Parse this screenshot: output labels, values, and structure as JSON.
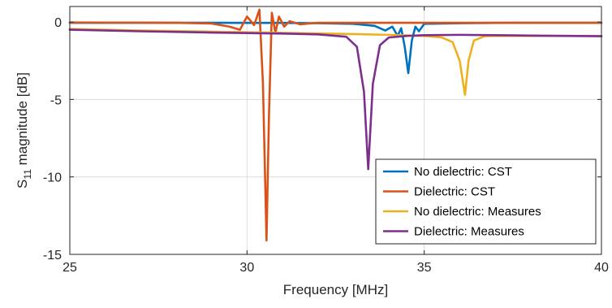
{
  "chart_data": {
    "type": "line",
    "title": "",
    "xlabel": "Frequency [MHz]",
    "ylabel": {
      "main": "S",
      "sub": "11",
      "rest": " magnitude [dB]"
    },
    "xlim": [
      25,
      40
    ],
    "ylim": [
      -15,
      1
    ],
    "xticks": [
      25,
      30,
      35,
      40
    ],
    "yticks": [
      0,
      -5,
      -10,
      -15
    ],
    "grid": true,
    "legend_position": "bottom-right",
    "series": [
      {
        "name": "No dielectric: CST",
        "color": "#0072BD",
        "points": [
          [
            25,
            -0.05
          ],
          [
            26,
            -0.05
          ],
          [
            27,
            -0.05
          ],
          [
            28,
            -0.05
          ],
          [
            29,
            -0.05
          ],
          [
            30,
            -0.06
          ],
          [
            31,
            -0.06
          ],
          [
            32,
            -0.08
          ],
          [
            33,
            -0.12
          ],
          [
            33.6,
            -0.25
          ],
          [
            33.9,
            -0.55
          ],
          [
            34.1,
            -0.3
          ],
          [
            34.25,
            -0.9
          ],
          [
            34.35,
            -0.4
          ],
          [
            34.45,
            -1.6
          ],
          [
            34.55,
            -3.3
          ],
          [
            34.65,
            -1.2
          ],
          [
            34.75,
            -0.3
          ],
          [
            34.85,
            -0.6
          ],
          [
            35,
            -0.12
          ],
          [
            36,
            -0.08
          ],
          [
            37,
            -0.06
          ],
          [
            38,
            -0.05
          ],
          [
            39,
            -0.05
          ],
          [
            40,
            -0.05
          ]
        ]
      },
      {
        "name": "Dielectric: CST",
        "color": "#D95319",
        "points": [
          [
            25,
            -0.03
          ],
          [
            26,
            -0.04
          ],
          [
            27,
            -0.04
          ],
          [
            28,
            -0.05
          ],
          [
            29,
            -0.1
          ],
          [
            29.5,
            -0.3
          ],
          [
            29.8,
            -0.5
          ],
          [
            30,
            0.35
          ],
          [
            30.2,
            -0.2
          ],
          [
            30.35,
            0.8
          ],
          [
            30.45,
            -4
          ],
          [
            30.55,
            -14.1
          ],
          [
            30.62,
            -6
          ],
          [
            30.7,
            0.6
          ],
          [
            30.8,
            -0.7
          ],
          [
            30.9,
            0.35
          ],
          [
            31.05,
            -0.3
          ],
          [
            31.2,
            0.05
          ],
          [
            31.5,
            -0.15
          ],
          [
            32,
            -0.05
          ],
          [
            33,
            -0.05
          ],
          [
            34,
            -0.05
          ],
          [
            35,
            -0.05
          ],
          [
            36,
            -0.05
          ],
          [
            37,
            -0.05
          ],
          [
            38,
            -0.05
          ],
          [
            39,
            -0.05
          ],
          [
            40,
            -0.05
          ]
        ]
      },
      {
        "name": "No dielectric: Measures",
        "color": "#EDB120",
        "points": [
          [
            25,
            -0.45
          ],
          [
            27,
            -0.55
          ],
          [
            29,
            -0.62
          ],
          [
            31,
            -0.7
          ],
          [
            33,
            -0.78
          ],
          [
            34,
            -0.83
          ],
          [
            35,
            -0.9
          ],
          [
            35.5,
            -1.0
          ],
          [
            35.8,
            -1.3
          ],
          [
            36,
            -2.5
          ],
          [
            36.15,
            -4.7
          ],
          [
            36.25,
            -2.5
          ],
          [
            36.4,
            -1.2
          ],
          [
            36.7,
            -0.92
          ],
          [
            37,
            -0.9
          ],
          [
            38,
            -0.9
          ],
          [
            39,
            -0.9
          ],
          [
            40,
            -0.9
          ]
        ]
      },
      {
        "name": "Dielectric: Measures",
        "color": "#7E2F8E",
        "points": [
          [
            25,
            -0.5
          ],
          [
            27,
            -0.6
          ],
          [
            29,
            -0.68
          ],
          [
            31,
            -0.75
          ],
          [
            32,
            -0.8
          ],
          [
            32.8,
            -0.95
          ],
          [
            33.1,
            -1.6
          ],
          [
            33.3,
            -4.5
          ],
          [
            33.42,
            -9.5
          ],
          [
            33.55,
            -4
          ],
          [
            33.75,
            -1.5
          ],
          [
            34,
            -1.0
          ],
          [
            34.5,
            -0.9
          ],
          [
            35,
            -0.85
          ],
          [
            36,
            -0.83
          ],
          [
            37,
            -0.85
          ],
          [
            38,
            -0.88
          ],
          [
            39,
            -0.9
          ],
          [
            40,
            -0.92
          ]
        ]
      }
    ]
  }
}
